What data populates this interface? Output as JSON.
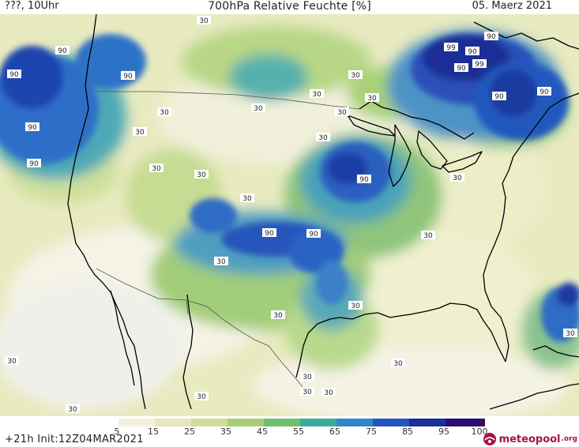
{
  "header": {
    "left": "???, 10Uhr",
    "title": "700hPa Relative Feuchte [%]",
    "date": "05. Maerz 2021"
  },
  "legend": {
    "ticks": [
      "5",
      "15",
      "25",
      "35",
      "45",
      "55",
      "65",
      "75",
      "85",
      "95",
      "100"
    ],
    "colors": [
      "#ffffff",
      "#f4f1df",
      "#e6e8b9",
      "#cfde98",
      "#a8cf73",
      "#6fbf6c",
      "#3fa89e",
      "#2f86c8",
      "#2255c0",
      "#1a2f99",
      "#2a0f70",
      "#3a0a52"
    ]
  },
  "footer": {
    "run_info": "+21h Init:12Z04MAR2021",
    "logo_name": "meteopool",
    "logo_tld": ".org"
  },
  "map_labels": {
    "humidity_values": [
      "90",
      "90",
      "90",
      "90",
      "90",
      "90",
      "90",
      "99",
      "90",
      "99",
      "90",
      "90",
      "90",
      "90",
      "90",
      "30",
      "30",
      "30",
      "30",
      "30",
      "30",
      "30",
      "30",
      "30",
      "30",
      "30",
      "30",
      "30",
      "30",
      "30",
      "30",
      "30",
      "30",
      "30",
      "30",
      "30",
      "30",
      "30",
      "30",
      "30"
    ]
  }
}
